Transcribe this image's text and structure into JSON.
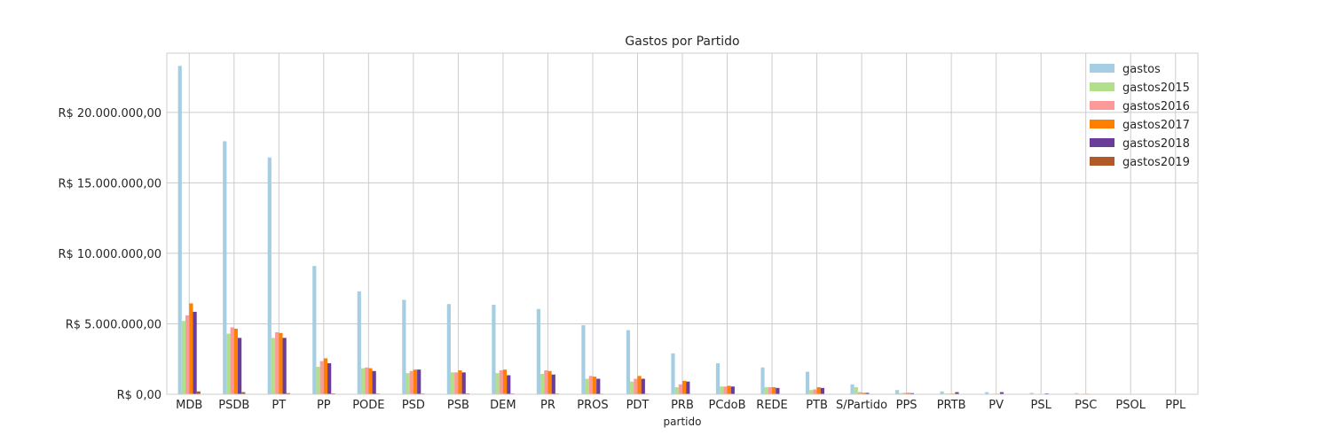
{
  "chart_data": {
    "type": "bar",
    "title": "Gastos por Partido",
    "xlabel": "partido",
    "ylabel": "",
    "ylim": [
      0,
      24200000
    ],
    "yticks": [
      0,
      5000000,
      10000000,
      15000000,
      20000000
    ],
    "ytick_labels": [
      "R$ 0,00",
      "R$ 5.000.000,00",
      "R$ 10.000.000,00",
      "R$ 15.000.000,00",
      "R$ 20.000.000,00"
    ],
    "grid": true,
    "legend_position": "top-right",
    "categories": [
      "MDB",
      "PSDB",
      "PT",
      "PP",
      "PODE",
      "PSD",
      "PSB",
      "DEM",
      "PR",
      "PROS",
      "PDT",
      "PRB",
      "PCdoB",
      "REDE",
      "PTB",
      "S/Partido",
      "PPS",
      "PRTB",
      "PV",
      "PSL",
      "PSC",
      "PSOL",
      "PPL"
    ],
    "series": [
      {
        "name": "gastos",
        "color": "#a6cee3",
        "values": [
          23300000,
          17950000,
          16800000,
          9100000,
          7300000,
          6700000,
          6400000,
          6350000,
          6050000,
          4900000,
          4550000,
          2900000,
          2200000,
          1900000,
          1600000,
          700000,
          300000,
          200000,
          150000,
          100000,
          80000,
          30000,
          20000
        ]
      },
      {
        "name": "gastos2015",
        "color": "#b2df8a",
        "values": [
          5200000,
          4300000,
          4000000,
          1950000,
          1850000,
          1500000,
          1550000,
          1500000,
          1450000,
          1100000,
          900000,
          500000,
          550000,
          500000,
          300000,
          500000,
          80000,
          50000,
          30000,
          20000,
          20000,
          10000,
          10000
        ]
      },
      {
        "name": "gastos2016",
        "color": "#fb9a99",
        "values": [
          5600000,
          4750000,
          4400000,
          2350000,
          1900000,
          1650000,
          1550000,
          1700000,
          1700000,
          1300000,
          1100000,
          700000,
          550000,
          500000,
          350000,
          150000,
          100000,
          50000,
          40000,
          30000,
          40000,
          10000,
          10000
        ]
      },
      {
        "name": "gastos2017",
        "color": "#ff7f00",
        "values": [
          6450000,
          4650000,
          4350000,
          2550000,
          1850000,
          1750000,
          1700000,
          1750000,
          1650000,
          1250000,
          1300000,
          950000,
          600000,
          500000,
          500000,
          100000,
          100000,
          50000,
          40000,
          30000,
          40000,
          10000,
          10000
        ]
      },
      {
        "name": "gastos2018",
        "color": "#6a3d9a",
        "values": [
          5850000,
          4000000,
          4000000,
          2200000,
          1650000,
          1750000,
          1550000,
          1350000,
          1400000,
          1100000,
          1100000,
          900000,
          550000,
          450000,
          450000,
          100000,
          80000,
          150000,
          150000,
          60000,
          30000,
          10000,
          10000
        ]
      },
      {
        "name": "gastos2019",
        "color": "#b15928",
        "values": [
          200000,
          150000,
          80000,
          60000,
          50000,
          50000,
          60000,
          50000,
          50000,
          40000,
          40000,
          30000,
          20000,
          20000,
          20000,
          10000,
          10000,
          10000,
          10000,
          5000,
          5000,
          5000,
          5000
        ]
      }
    ]
  }
}
